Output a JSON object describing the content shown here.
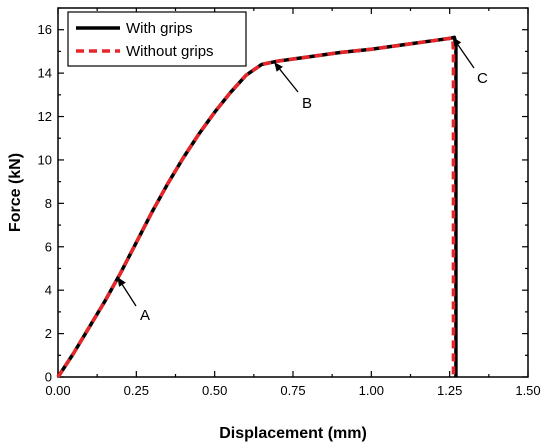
{
  "chart_data": {
    "type": "line",
    "xlabel": "Displacement (mm)",
    "ylabel": "Force (kN)",
    "xlim": [
      0,
      1.5
    ],
    "ylim": [
      0,
      17
    ],
    "x_ticks": [
      "0.00",
      "0.25",
      "0.50",
      "0.75",
      "1.00",
      "1.25",
      "1.50"
    ],
    "y_ticks": [
      "0",
      "2",
      "4",
      "6",
      "8",
      "10",
      "12",
      "14",
      "16"
    ],
    "grid": false,
    "legend_position": "top-left",
    "series": [
      {
        "name": "With grips",
        "color": "#000000",
        "style": "solid",
        "x": [
          0.0,
          0.05,
          0.1,
          0.15,
          0.2,
          0.25,
          0.3,
          0.35,
          0.4,
          0.45,
          0.5,
          0.55,
          0.6,
          0.65,
          0.7,
          0.8,
          0.9,
          1.0,
          1.1,
          1.2,
          1.25,
          1.265,
          1.27,
          1.27
        ],
        "y": [
          0.0,
          1.1,
          2.3,
          3.5,
          4.8,
          6.2,
          7.6,
          8.9,
          10.1,
          11.2,
          12.2,
          13.1,
          13.9,
          14.4,
          14.55,
          14.75,
          14.95,
          15.1,
          15.3,
          15.5,
          15.6,
          15.65,
          15.3,
          0.0
        ]
      },
      {
        "name": "Without grips",
        "color": "#e8262a",
        "style": "dashed",
        "x": [
          0.0,
          0.05,
          0.1,
          0.15,
          0.2,
          0.25,
          0.3,
          0.35,
          0.4,
          0.45,
          0.5,
          0.55,
          0.6,
          0.65,
          0.7,
          0.8,
          0.9,
          1.0,
          1.1,
          1.2,
          1.25,
          1.26,
          1.262,
          1.262
        ],
        "y": [
          0.0,
          1.1,
          2.3,
          3.5,
          4.8,
          6.2,
          7.6,
          8.9,
          10.1,
          11.2,
          12.2,
          13.1,
          13.9,
          14.4,
          14.55,
          14.75,
          14.95,
          15.1,
          15.3,
          15.5,
          15.6,
          15.62,
          15.0,
          0.0
        ]
      }
    ],
    "annotations": [
      {
        "label": "A",
        "x": 0.19,
        "y": 4.6
      },
      {
        "label": "B",
        "x": 0.69,
        "y": 14.5
      },
      {
        "label": "C",
        "x": 1.26,
        "y": 15.65
      }
    ]
  }
}
